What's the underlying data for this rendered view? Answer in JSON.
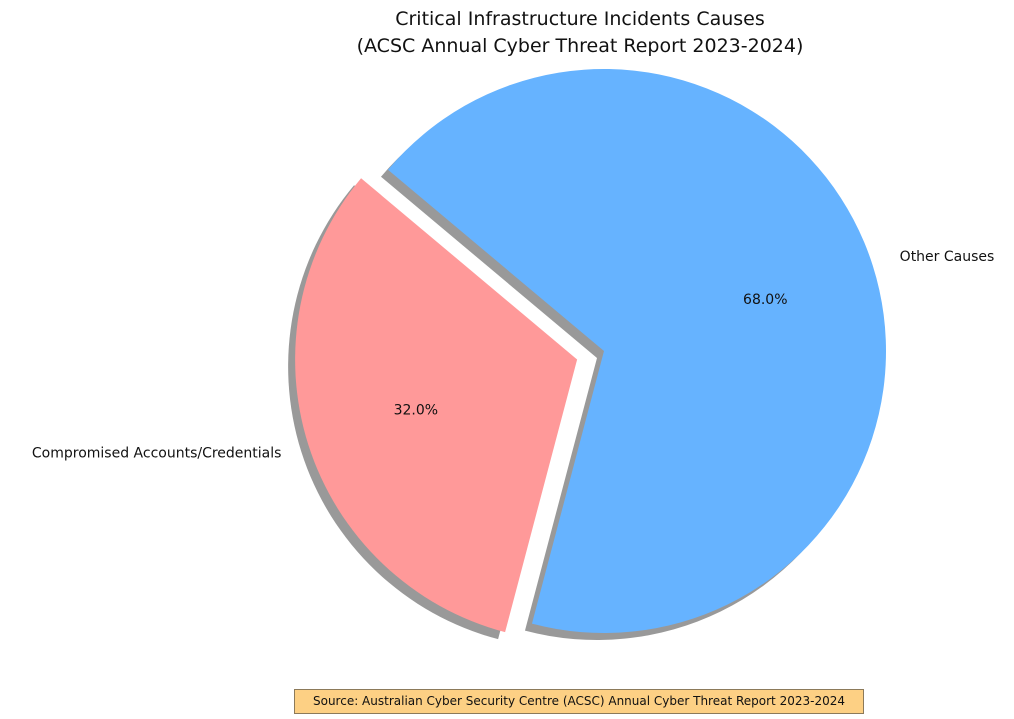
{
  "chart_data": {
    "type": "pie",
    "title": "Critical Infrastructure Incidents Causes\n(ACSC Annual Cyber Threat Report 2023-2024)",
    "categories": [
      "Compromised Accounts/Credentials",
      "Other Causes"
    ],
    "values": [
      32,
      68
    ],
    "value_labels": [
      "32.0%",
      "68.0%"
    ],
    "colors": [
      "#ff9999",
      "#66b3ff"
    ],
    "explode": [
      0.1,
      0
    ],
    "startangle": 140,
    "shadow": true,
    "source": "Source: Australian Cyber Security Centre (ACSC) Annual Cyber Threat Report 2023-2024"
  }
}
